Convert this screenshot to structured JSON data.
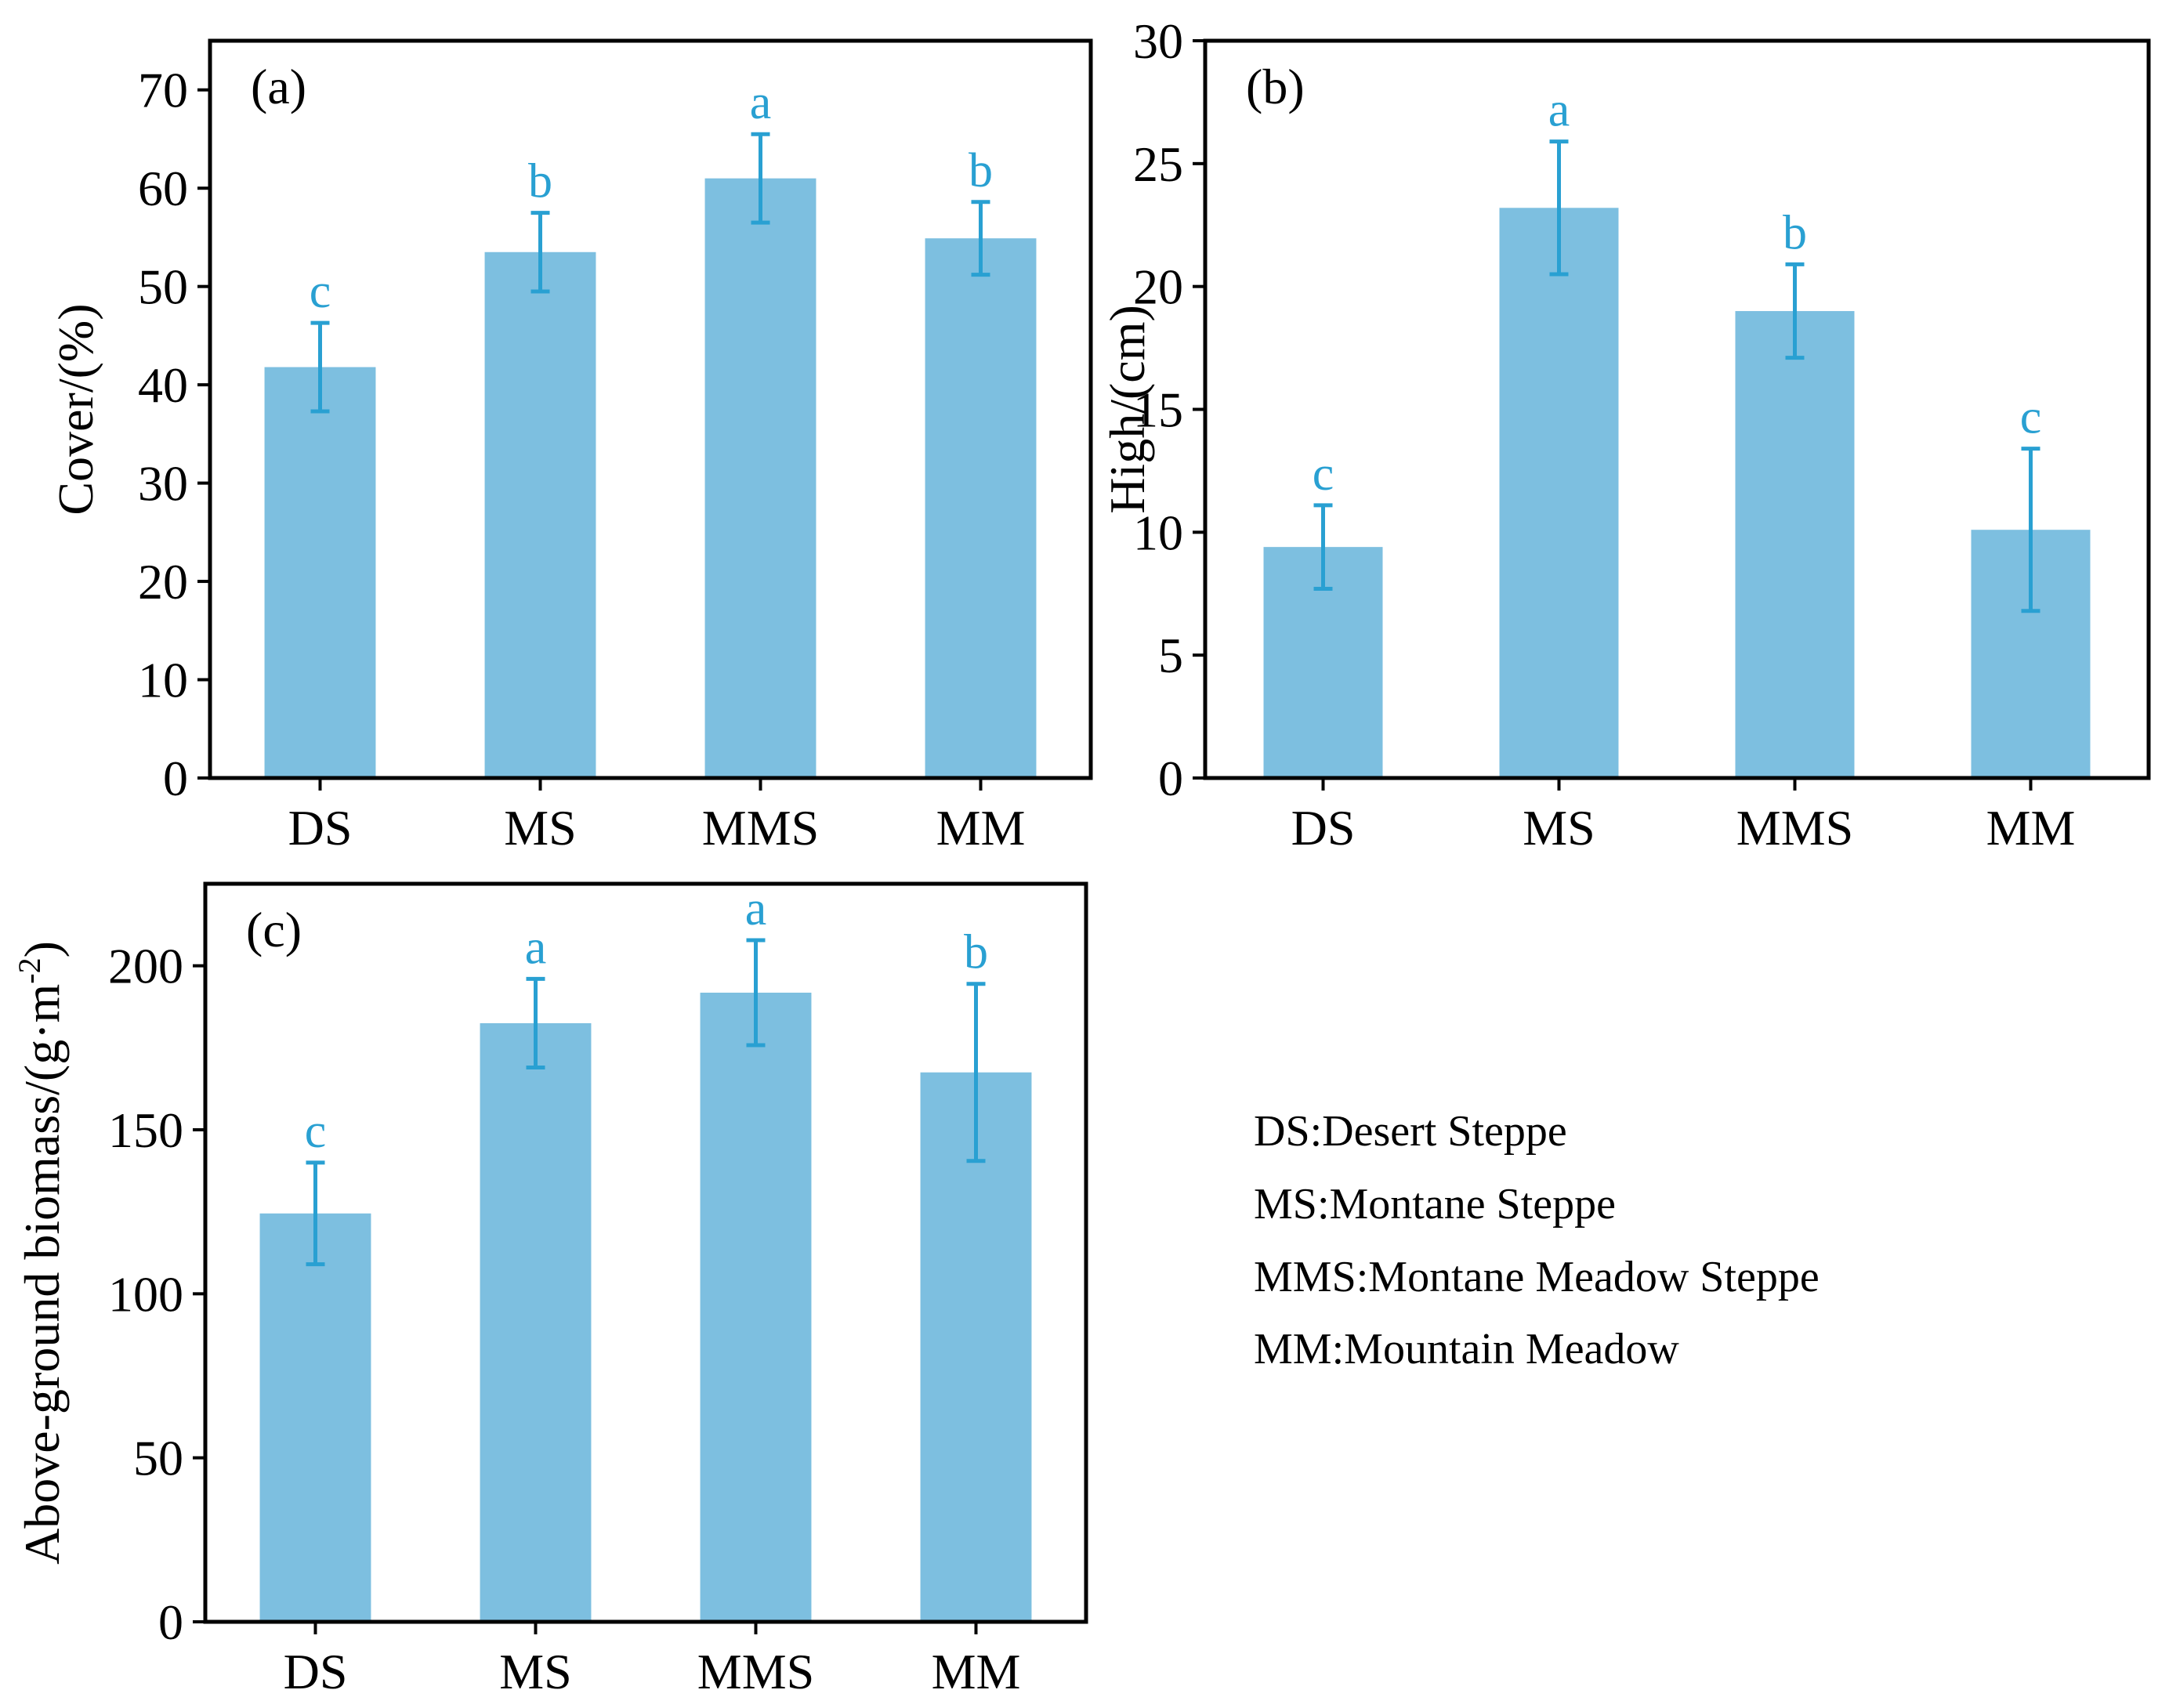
{
  "colors": {
    "bar": "#7DBFE0",
    "error": "#29A0D2",
    "sig": "#29A0D2",
    "axis": "#000000"
  },
  "chart_data": [
    {
      "id": "a",
      "type": "bar",
      "panel_label": "(a)",
      "categories": [
        "DS",
        "MS",
        "MMS",
        "MM"
      ],
      "values": [
        41.8,
        53.5,
        61.0,
        54.9
      ],
      "errors": [
        4.5,
        4.0,
        4.5,
        3.7
      ],
      "significance": [
        "c",
        "b",
        "a",
        "b"
      ],
      "ylabel": "Cover/(%)",
      "ylim": [
        0,
        75
      ],
      "yticks": [
        0,
        10,
        20,
        30,
        40,
        50,
        60,
        70
      ],
      "ytick_labels": [
        "0",
        "10",
        "20",
        "30",
        "40",
        "50",
        "60",
        "70"
      ]
    },
    {
      "id": "b",
      "type": "bar",
      "panel_label": "(b)",
      "categories": [
        "DS",
        "MS",
        "MMS",
        "MM"
      ],
      "values": [
        9.4,
        23.2,
        19.0,
        10.1
      ],
      "errors": [
        1.7,
        2.7,
        1.9,
        3.3
      ],
      "significance": [
        "c",
        "a",
        "b",
        "c"
      ],
      "ylabel": "High/(cm)",
      "ylim": [
        0,
        30
      ],
      "yticks": [
        0,
        5,
        10,
        15,
        20,
        25,
        30
      ],
      "ytick_labels": [
        "0",
        "5",
        "10",
        "15",
        "20",
        "25",
        "30"
      ]
    },
    {
      "id": "c",
      "type": "bar",
      "panel_label": "(c)",
      "categories": [
        "DS",
        "MS",
        "MMS",
        "MM"
      ],
      "values": [
        124.5,
        182.5,
        191.8,
        167.5
      ],
      "errors": [
        15.5,
        13.5,
        16.0,
        27.0
      ],
      "significance": [
        "c",
        "a",
        "a",
        "b"
      ],
      "ylabel_main": "Above-ground biomass/(g·m",
      "ylabel_sup": "-2",
      "ylabel_close": ")",
      "ylim": [
        0,
        225
      ],
      "yticks": [
        0,
        50,
        100,
        150,
        200
      ],
      "ytick_labels": [
        "0",
        "50",
        "100",
        "150",
        "200"
      ]
    }
  ],
  "legend": {
    "items": [
      "DS:Desert Steppe",
      "MS:Montane Steppe",
      "MMS:Montane Meadow Steppe",
      "MM:Mountain Meadow"
    ]
  }
}
